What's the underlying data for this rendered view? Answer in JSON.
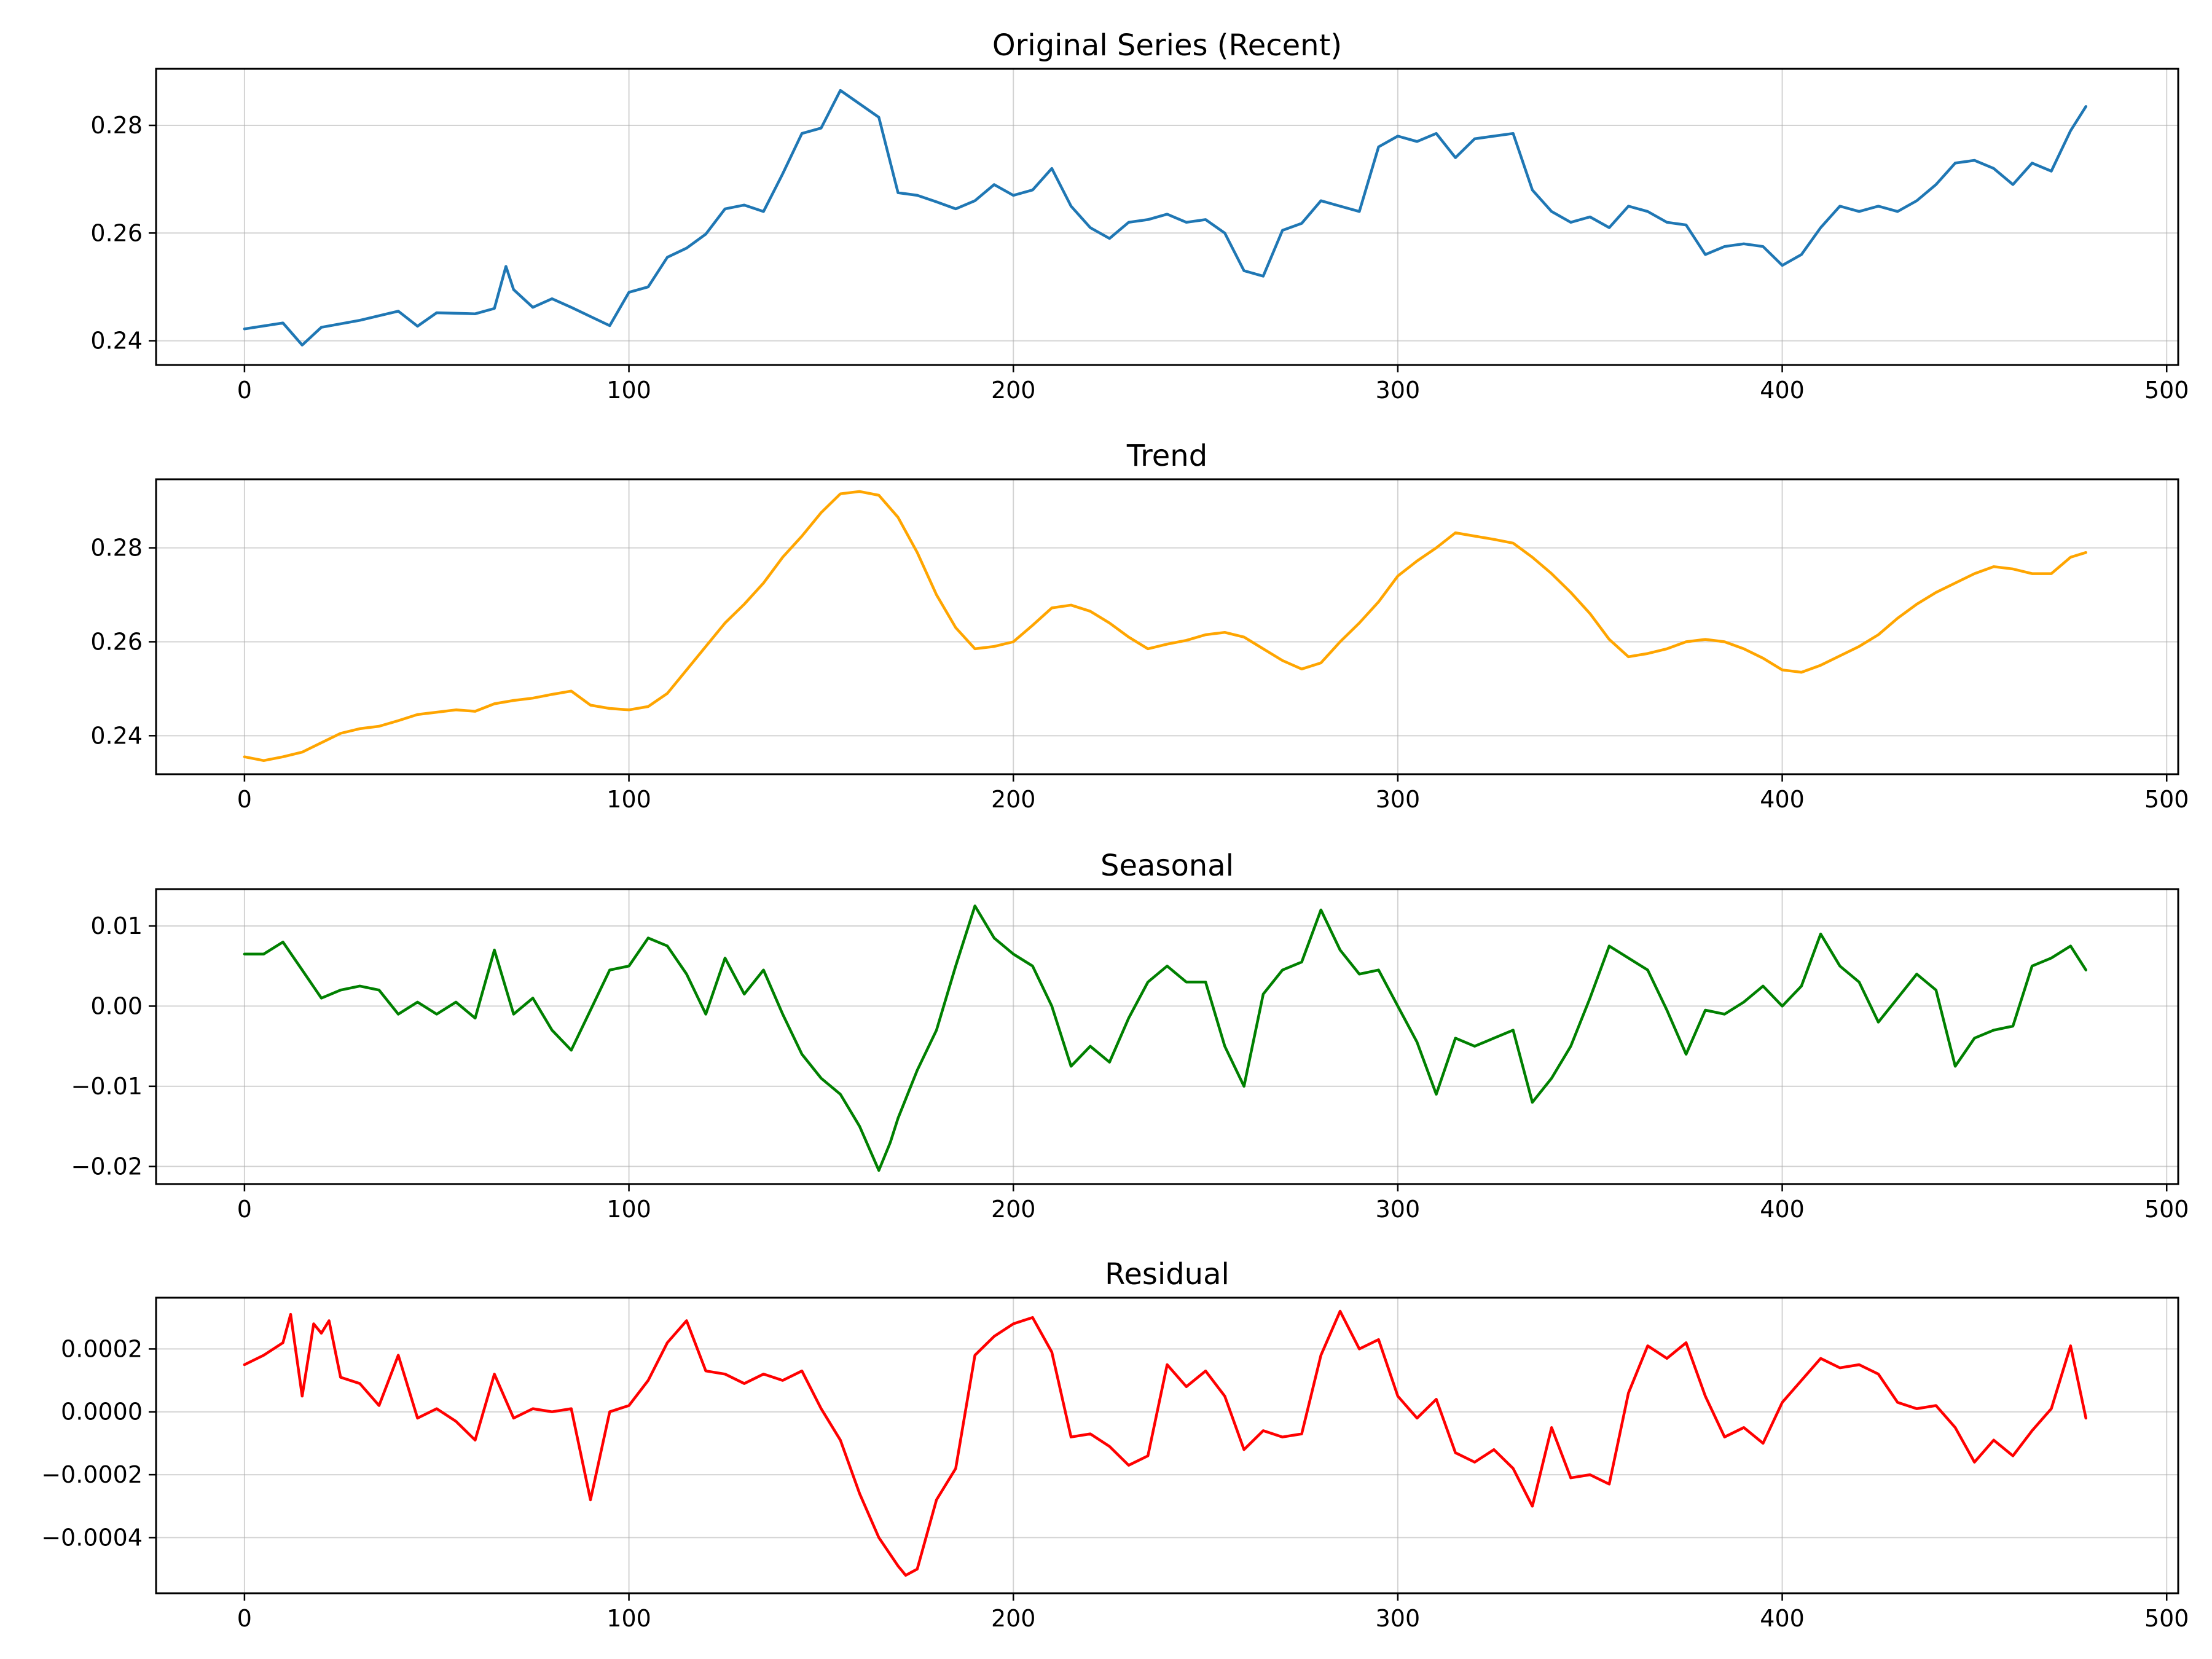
{
  "figure": {
    "background": "#ffffff"
  },
  "chart_data": [
    {
      "type": "line",
      "title": "Original Series (Recent)",
      "color": "#1f77b4",
      "xlabel": "",
      "ylabel": "",
      "xlim": [
        -23,
        503
      ],
      "ylim": [
        0.2355,
        0.2905
      ],
      "xticks": [
        0,
        100,
        200,
        300,
        400,
        500
      ],
      "xtick_labels": [
        "0",
        "100",
        "200",
        "300",
        "400",
        "500"
      ],
      "yticks": [
        0.24,
        0.26,
        0.28
      ],
      "ytick_labels": [
        "0.24",
        "0.26",
        "0.28"
      ],
      "grid": true,
      "x": [
        0,
        10,
        15,
        20,
        30,
        40,
        45,
        50,
        60,
        65,
        68,
        70,
        75,
        80,
        85,
        90,
        95,
        100,
        105,
        110,
        115,
        120,
        125,
        130,
        135,
        140,
        145,
        150,
        155,
        160,
        165,
        170,
        175,
        180,
        185,
        190,
        195,
        200,
        205,
        210,
        215,
        220,
        225,
        230,
        235,
        240,
        245,
        250,
        255,
        260,
        265,
        270,
        275,
        280,
        285,
        290,
        295,
        300,
        305,
        310,
        315,
        320,
        325,
        330,
        335,
        340,
        345,
        350,
        355,
        360,
        365,
        370,
        375,
        380,
        385,
        390,
        395,
        400,
        405,
        410,
        415,
        420,
        425,
        430,
        435,
        440,
        445,
        450,
        455,
        460,
        465,
        470,
        475,
        479
      ],
      "y": [
        0.2422,
        0.2433,
        0.2392,
        0.2425,
        0.2438,
        0.2455,
        0.2427,
        0.2452,
        0.245,
        0.246,
        0.2538,
        0.2495,
        0.2462,
        0.2478,
        0.2462,
        0.2445,
        0.2428,
        0.249,
        0.25,
        0.2555,
        0.2572,
        0.2598,
        0.2645,
        0.2652,
        0.264,
        0.271,
        0.2785,
        0.2795,
        0.2865,
        0.284,
        0.2815,
        0.2675,
        0.267,
        0.2658,
        0.2645,
        0.266,
        0.269,
        0.267,
        0.268,
        0.272,
        0.265,
        0.261,
        0.259,
        0.262,
        0.2625,
        0.2635,
        0.262,
        0.2625,
        0.26,
        0.253,
        0.252,
        0.2605,
        0.2618,
        0.266,
        0.265,
        0.264,
        0.276,
        0.278,
        0.277,
        0.2785,
        0.274,
        0.2775,
        0.278,
        0.2785,
        0.268,
        0.264,
        0.262,
        0.263,
        0.261,
        0.265,
        0.264,
        0.262,
        0.2615,
        0.256,
        0.2575,
        0.258,
        0.2575,
        0.254,
        0.256,
        0.261,
        0.265,
        0.264,
        0.265,
        0.264,
        0.266,
        0.269,
        0.273,
        0.2735,
        0.272,
        0.269,
        0.273,
        0.2715,
        0.279,
        0.2835
      ]
    },
    {
      "type": "line",
      "title": "Trend",
      "color": "#ffa500",
      "xlabel": "",
      "ylabel": "",
      "xlim": [
        -23,
        503
      ],
      "ylim": [
        0.2318,
        0.2946
      ],
      "xticks": [
        0,
        100,
        200,
        300,
        400,
        500
      ],
      "xtick_labels": [
        "0",
        "100",
        "200",
        "300",
        "400",
        "500"
      ],
      "yticks": [
        0.24,
        0.26,
        0.28
      ],
      "ytick_labels": [
        "0.24",
        "0.26",
        "0.28"
      ],
      "grid": true,
      "x": [
        0,
        5,
        10,
        15,
        20,
        25,
        30,
        35,
        40,
        45,
        50,
        55,
        60,
        65,
        70,
        75,
        80,
        85,
        90,
        95,
        100,
        105,
        110,
        115,
        120,
        125,
        130,
        135,
        140,
        145,
        150,
        155,
        160,
        165,
        170,
        175,
        180,
        185,
        190,
        195,
        200,
        205,
        210,
        215,
        220,
        225,
        230,
        235,
        240,
        245,
        250,
        255,
        260,
        265,
        270,
        275,
        280,
        285,
        290,
        295,
        300,
        305,
        310,
        315,
        320,
        325,
        330,
        335,
        340,
        345,
        350,
        355,
        360,
        365,
        370,
        375,
        380,
        385,
        390,
        395,
        400,
        405,
        410,
        415,
        420,
        425,
        430,
        435,
        440,
        445,
        450,
        455,
        460,
        465,
        470,
        475,
        479
      ],
      "y": [
        0.2355,
        0.2347,
        0.2355,
        0.2365,
        0.2385,
        0.2405,
        0.2415,
        0.242,
        0.2432,
        0.2445,
        0.245,
        0.2455,
        0.2452,
        0.2468,
        0.2475,
        0.248,
        0.2488,
        0.2495,
        0.2465,
        0.2458,
        0.2455,
        0.2462,
        0.249,
        0.254,
        0.259,
        0.264,
        0.268,
        0.2725,
        0.278,
        0.2825,
        0.2875,
        0.2915,
        0.292,
        0.2912,
        0.2865,
        0.279,
        0.27,
        0.263,
        0.2585,
        0.259,
        0.26,
        0.2635,
        0.2672,
        0.2678,
        0.2665,
        0.264,
        0.261,
        0.2585,
        0.2595,
        0.2603,
        0.2615,
        0.262,
        0.261,
        0.2585,
        0.256,
        0.2542,
        0.2555,
        0.26,
        0.264,
        0.2685,
        0.274,
        0.2772,
        0.28,
        0.2832,
        0.2825,
        0.2818,
        0.281,
        0.278,
        0.2745,
        0.2705,
        0.266,
        0.2605,
        0.2568,
        0.2575,
        0.2585,
        0.26,
        0.2605,
        0.26,
        0.2585,
        0.2565,
        0.254,
        0.2535,
        0.255,
        0.257,
        0.259,
        0.2615,
        0.265,
        0.268,
        0.2705,
        0.2725,
        0.2745,
        0.276,
        0.2755,
        0.2745,
        0.2745,
        0.278,
        0.279
      ]
    },
    {
      "type": "line",
      "title": "Seasonal",
      "color": "#008000",
      "xlabel": "",
      "ylabel": "",
      "xlim": [
        -23,
        503
      ],
      "ylim": [
        -0.0222,
        0.0146
      ],
      "xticks": [
        0,
        100,
        200,
        300,
        400,
        500
      ],
      "xtick_labels": [
        "0",
        "100",
        "200",
        "300",
        "400",
        "500"
      ],
      "yticks": [
        -0.02,
        -0.01,
        0.0,
        0.01
      ],
      "ytick_labels": [
        "−0.02",
        "−0.01",
        "0.00",
        "0.01"
      ],
      "grid": true,
      "x": [
        0,
        5,
        10,
        15,
        20,
        25,
        30,
        35,
        40,
        45,
        50,
        55,
        60,
        65,
        70,
        75,
        80,
        85,
        90,
        95,
        100,
        105,
        110,
        115,
        120,
        125,
        130,
        135,
        140,
        145,
        150,
        155,
        160,
        165,
        168,
        170,
        175,
        180,
        185,
        190,
        195,
        200,
        205,
        210,
        215,
        220,
        225,
        230,
        235,
        240,
        245,
        250,
        255,
        260,
        265,
        270,
        275,
        280,
        285,
        290,
        295,
        300,
        305,
        310,
        315,
        320,
        325,
        330,
        335,
        340,
        345,
        350,
        355,
        360,
        365,
        370,
        375,
        380,
        385,
        390,
        395,
        400,
        405,
        410,
        415,
        420,
        425,
        430,
        435,
        440,
        445,
        450,
        455,
        460,
        465,
        470,
        475,
        479
      ],
      "y": [
        0.0065,
        0.0065,
        0.008,
        0.0045,
        0.001,
        0.002,
        0.0025,
        0.002,
        -0.001,
        0.0005,
        -0.001,
        0.0005,
        -0.0015,
        0.007,
        -0.001,
        0.001,
        -0.003,
        -0.0055,
        -0.0005,
        0.0045,
        0.005,
        0.0085,
        0.0075,
        0.004,
        -0.001,
        0.006,
        0.0015,
        0.0045,
        -0.001,
        -0.006,
        -0.009,
        -0.011,
        -0.015,
        -0.0205,
        -0.017,
        -0.014,
        -0.008,
        -0.003,
        0.005,
        0.0125,
        0.0085,
        0.0065,
        0.005,
        0.0,
        -0.0075,
        -0.005,
        -0.007,
        -0.0015,
        0.003,
        0.005,
        0.003,
        0.003,
        -0.005,
        -0.01,
        0.0015,
        0.0045,
        0.0055,
        0.012,
        0.007,
        0.004,
        0.0045,
        0.0,
        -0.0045,
        -0.011,
        -0.004,
        -0.005,
        -0.004,
        -0.003,
        -0.012,
        -0.009,
        -0.005,
        0.001,
        0.0075,
        0.006,
        0.0045,
        -0.0005,
        -0.006,
        -0.0005,
        -0.001,
        0.0005,
        0.0025,
        0.0,
        0.0025,
        0.009,
        0.005,
        0.003,
        -0.002,
        0.001,
        0.004,
        0.002,
        -0.0075,
        -0.004,
        -0.003,
        -0.0025,
        0.005,
        0.006,
        0.0075,
        0.0045
      ]
    },
    {
      "type": "line",
      "title": "Residual",
      "color": "#ff0000",
      "xlabel": "",
      "ylabel": "",
      "xlim": [
        -23,
        503
      ],
      "ylim": [
        -0.000577,
        0.000363
      ],
      "xticks": [
        0,
        100,
        200,
        300,
        400,
        500
      ],
      "xtick_labels": [
        "0",
        "100",
        "200",
        "300",
        "400",
        "500"
      ],
      "yticks": [
        -0.0004,
        -0.0002,
        0.0,
        0.0002
      ],
      "ytick_labels": [
        "−0.0004",
        "−0.0002",
        "0.0000",
        "0.0002"
      ],
      "grid": true,
      "x": [
        0,
        5,
        10,
        12,
        15,
        18,
        20,
        22,
        25,
        30,
        35,
        40,
        45,
        50,
        55,
        60,
        65,
        70,
        75,
        80,
        85,
        90,
        95,
        100,
        105,
        110,
        115,
        120,
        125,
        130,
        135,
        140,
        145,
        150,
        155,
        160,
        165,
        170,
        172,
        175,
        180,
        185,
        190,
        195,
        200,
        205,
        210,
        215,
        220,
        225,
        230,
        235,
        240,
        245,
        250,
        255,
        260,
        265,
        270,
        275,
        280,
        285,
        290,
        295,
        300,
        305,
        310,
        315,
        320,
        325,
        330,
        335,
        340,
        345,
        350,
        355,
        360,
        365,
        370,
        375,
        380,
        385,
        390,
        395,
        400,
        405,
        410,
        415,
        420,
        425,
        430,
        435,
        440,
        445,
        450,
        455,
        460,
        465,
        470,
        475,
        479
      ],
      "y": [
        0.00015,
        0.00018,
        0.00022,
        0.00031,
        5e-05,
        0.00028,
        0.00025,
        0.00029,
        0.00011,
        9e-05,
        2e-05,
        0.00018,
        -2e-05,
        1e-05,
        -3e-05,
        -9e-05,
        0.00012,
        -2e-05,
        1e-05,
        0.0,
        1e-05,
        -0.00028,
        0.0,
        2e-05,
        0.0001,
        0.00022,
        0.00029,
        0.00013,
        0.00012,
        9e-05,
        0.00012,
        0.0001,
        0.00013,
        1e-05,
        -9e-05,
        -0.00026,
        -0.0004,
        -0.00049,
        -0.00052,
        -0.0005,
        -0.00028,
        -0.00018,
        0.00018,
        0.00024,
        0.00028,
        0.0003,
        0.00019,
        -8e-05,
        -7e-05,
        -0.00011,
        -0.00017,
        -0.00014,
        0.00015,
        8e-05,
        0.00013,
        5e-05,
        -0.00012,
        -6e-05,
        -8e-05,
        -7e-05,
        0.00018,
        0.00032,
        0.0002,
        0.00023,
        5e-05,
        -2e-05,
        4e-05,
        -0.00013,
        -0.00016,
        -0.00012,
        -0.00018,
        -0.0003,
        -5e-05,
        -0.00021,
        -0.0002,
        -0.00023,
        6e-05,
        0.00021,
        0.00017,
        0.00022,
        5e-05,
        -8e-05,
        -5e-05,
        -0.0001,
        3e-05,
        0.0001,
        0.00017,
        0.00014,
        0.00015,
        0.00012,
        3e-05,
        1e-05,
        2e-05,
        -5e-05,
        -0.00016,
        -9e-05,
        -0.00014,
        -6e-05,
        1e-05,
        0.00021,
        -2e-05
      ]
    }
  ]
}
